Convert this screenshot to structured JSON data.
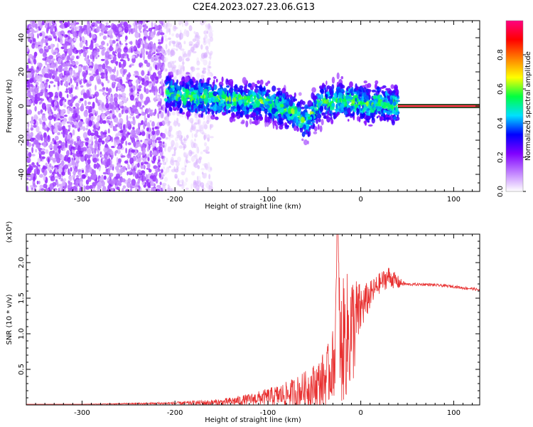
{
  "figure": {
    "title": "C2E4.2023.027.23.06.G13"
  },
  "chart_data": [
    {
      "type": "heatmap",
      "title": "",
      "xlabel": "Height of straight line (km)",
      "ylabel": "Frequency (Hz)",
      "xlim": [
        -360,
        128
      ],
      "ylim": [
        -50,
        50
      ],
      "xticks": [
        -300,
        -200,
        -100,
        0,
        100
      ],
      "yticks": [
        -40,
        -20,
        0,
        20,
        40
      ],
      "grid": false,
      "colorbar": {
        "label": "Normalized spectral amplitude",
        "range": [
          0,
          1
        ],
        "ticks": [
          0.0,
          0.2,
          0.4,
          0.6,
          0.8
        ],
        "tick_labels": [
          "0.0",
          "0.2",
          "0.4",
          "0.6",
          "0.8"
        ],
        "colors": [
          "#ffffff",
          "#c080ff",
          "#8000ff",
          "#0000ff",
          "#00e0ff",
          "#00ff40",
          "#ffff00",
          "#ff8000",
          "#ff0000",
          "#ff0080"
        ]
      },
      "regions": [
        {
          "x_range": [
            -360,
            -212
          ],
          "freq_range": [
            -50,
            50
          ],
          "amplitude_range": [
            0.05,
            0.2
          ],
          "description_level": "broadband"
        },
        {
          "x_range": [
            -212,
            -160
          ],
          "freq_range": [
            -50,
            50
          ],
          "amplitude_range": [
            0.02,
            0.08
          ],
          "description_level": "sparse"
        },
        {
          "x_range": [
            -210,
            40
          ],
          "freq_range": [
            -12,
            12
          ],
          "amplitude_range": [
            0.15,
            0.55
          ],
          "description_level": "signal"
        },
        {
          "x_range": [
            40,
            128
          ],
          "freq_range": [
            -1,
            1
          ],
          "amplitude_range": [
            0.85,
            0.95
          ],
          "description_level": "saturated"
        }
      ],
      "signal_center_track": {
        "x": [
          -210,
          -180,
          -150,
          -120,
          -100,
          -80,
          -70,
          -60,
          -50,
          -40,
          -30,
          -20,
          -10,
          0,
          10,
          20,
          30,
          40
        ],
        "freq": [
          8,
          5,
          4,
          3,
          2,
          -2,
          -4,
          -9,
          -3,
          3,
          2,
          4,
          3,
          2,
          0,
          3,
          1,
          0
        ]
      }
    },
    {
      "type": "line",
      "title": "",
      "xlabel": "Height of straight line (km)",
      "ylabel": "SNR (10 * v/v)",
      "y_scale_label": "(x10⁴)",
      "xlim": [
        -360,
        128
      ],
      "ylim": [
        0,
        2.4
      ],
      "xticks": [
        -300,
        -200,
        -100,
        0,
        100
      ],
      "yticks": [
        0.5,
        1.0,
        1.5,
        2.0
      ],
      "ytick_labels": [
        "0.5",
        "1.0",
        "1.5",
        "2.0"
      ],
      "grid": false,
      "series": [
        {
          "color": "#e83030",
          "x": [
            -360,
            -300,
            -250,
            -200,
            -150,
            -120,
            -100,
            -80,
            -60,
            -45,
            -35,
            -28,
            -25,
            -22,
            -18,
            -10,
            0,
            10,
            20,
            30,
            40,
            45,
            50,
            60,
            70,
            80,
            90,
            100,
            110,
            120,
            128
          ],
          "y": [
            0.01,
            0.01,
            0.02,
            0.03,
            0.05,
            0.1,
            0.15,
            0.2,
            0.3,
            0.4,
            0.55,
            0.8,
            2.4,
            1.0,
            1.2,
            1.3,
            1.45,
            1.6,
            1.75,
            1.85,
            1.75,
            1.72,
            1.7,
            1.7,
            1.7,
            1.69,
            1.68,
            1.67,
            1.65,
            1.64,
            1.62
          ],
          "noise": [
            0.0,
            0.0,
            0.01,
            0.02,
            0.05,
            0.08,
            0.12,
            0.18,
            0.25,
            0.35,
            0.45,
            0.5,
            0.6,
            0.8,
            0.9,
            0.9,
            0.35,
            0.2,
            0.15,
            0.15,
            0.1,
            0.04,
            0.02,
            0.02,
            0.02,
            0.02,
            0.02,
            0.02,
            0.02,
            0.02,
            0.02
          ]
        }
      ]
    }
  ]
}
